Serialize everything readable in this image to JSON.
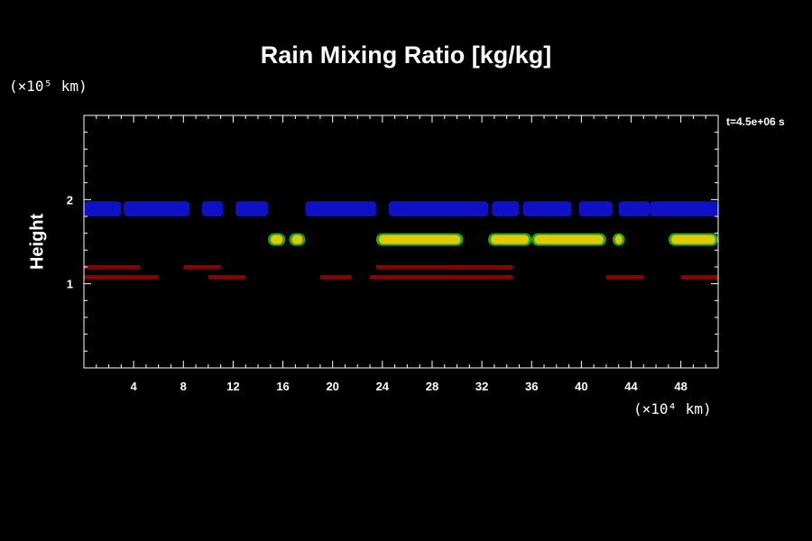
{
  "chart_data": {
    "type": "heatmap",
    "title": "Rain Mixing Ratio [kg/kg]",
    "ylabel": "Height",
    "x_unit": "(×10⁴ km)",
    "y_unit": "(×10⁵ km)",
    "annotation": "t=4.5e+06 s",
    "xlim": [
      0,
      51
    ],
    "ylim": [
      0,
      3
    ],
    "x_ticks": [
      4,
      8,
      12,
      16,
      20,
      24,
      28,
      32,
      36,
      40,
      44,
      48
    ],
    "y_ticks": [
      1,
      2
    ],
    "colors": {
      "background": "#000000",
      "axes": "#ffffff",
      "low": "#8b0000",
      "mid_low": "#1fa81f",
      "mid": "#e6c800",
      "high_level": "#1010c8"
    },
    "bands": [
      {
        "level": "blue",
        "color": "#1010c8",
        "y": [
          1.8,
          1.98
        ],
        "segments": [
          [
            0,
            3
          ],
          [
            3.2,
            8.5
          ],
          [
            9.5,
            11.2
          ],
          [
            12.2,
            14.8
          ],
          [
            17.8,
            22.2
          ],
          [
            21.8,
            23.5
          ],
          [
            24.5,
            32.5
          ],
          [
            32.8,
            35.0
          ],
          [
            35.3,
            39.2
          ],
          [
            39.8,
            42.5
          ],
          [
            43.0,
            45.5
          ],
          [
            45.5,
            51
          ]
        ]
      },
      {
        "level": "green-yellow",
        "color": "#e6c800",
        "y": [
          1.45,
          1.6
        ],
        "segments": [
          [
            14.8,
            16.2
          ],
          [
            16.5,
            17.8
          ],
          [
            23.5,
            30.5
          ],
          [
            32.5,
            36.0
          ],
          [
            36.0,
            42.0
          ],
          [
            42.5,
            43.5
          ],
          [
            47.0,
            51
          ]
        ]
      },
      {
        "level": "dark-red-upper",
        "color": "#8b0000",
        "y": [
          1.15,
          1.24
        ],
        "segments": [
          [
            0,
            4.5
          ],
          [
            8,
            11
          ],
          [
            23.5,
            34.5
          ],
          [
            29.5,
            33.5
          ]
        ]
      },
      {
        "level": "dark-red-lower",
        "color": "#8b0000",
        "y": [
          1.03,
          1.12
        ],
        "segments": [
          [
            0,
            6
          ],
          [
            10,
            11.5
          ],
          [
            11.5,
            13
          ],
          [
            19,
            21.5
          ],
          [
            23,
            34.5
          ],
          [
            42,
            45
          ],
          [
            48,
            51
          ]
        ]
      }
    ]
  }
}
